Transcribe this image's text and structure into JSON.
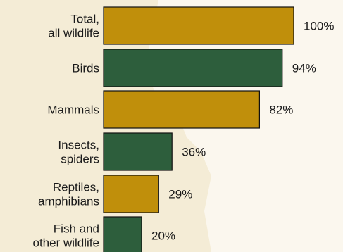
{
  "chart_data": {
    "type": "bar",
    "orientation": "horizontal",
    "categories": [
      [
        "Total,",
        "all wildlife"
      ],
      [
        "Birds"
      ],
      [
        "Mammals"
      ],
      [
        "Insects,",
        "spiders"
      ],
      [
        "Reptiles,",
        "amphibians"
      ],
      [
        "Fish and",
        "other wildlife"
      ]
    ],
    "values": [
      100,
      94,
      82,
      36,
      29,
      20
    ],
    "value_labels": [
      "100%",
      "94%",
      "82%",
      "36%",
      "29%",
      "20%"
    ],
    "bar_colors": [
      "#c08f0b",
      "#2d5e3c",
      "#c08f0b",
      "#2d5e3c",
      "#c08f0b",
      "#2d5e3c"
    ],
    "xlim": [
      0,
      100
    ],
    "title": "",
    "xlabel": "",
    "ylabel": "",
    "legend": "none",
    "grid": false
  },
  "colors": {
    "background": "#f4ecd6",
    "background_shape": "#fbf7ee",
    "gold": "#c08f0b",
    "green": "#2d5e3c",
    "bar_outline": "#111111"
  }
}
